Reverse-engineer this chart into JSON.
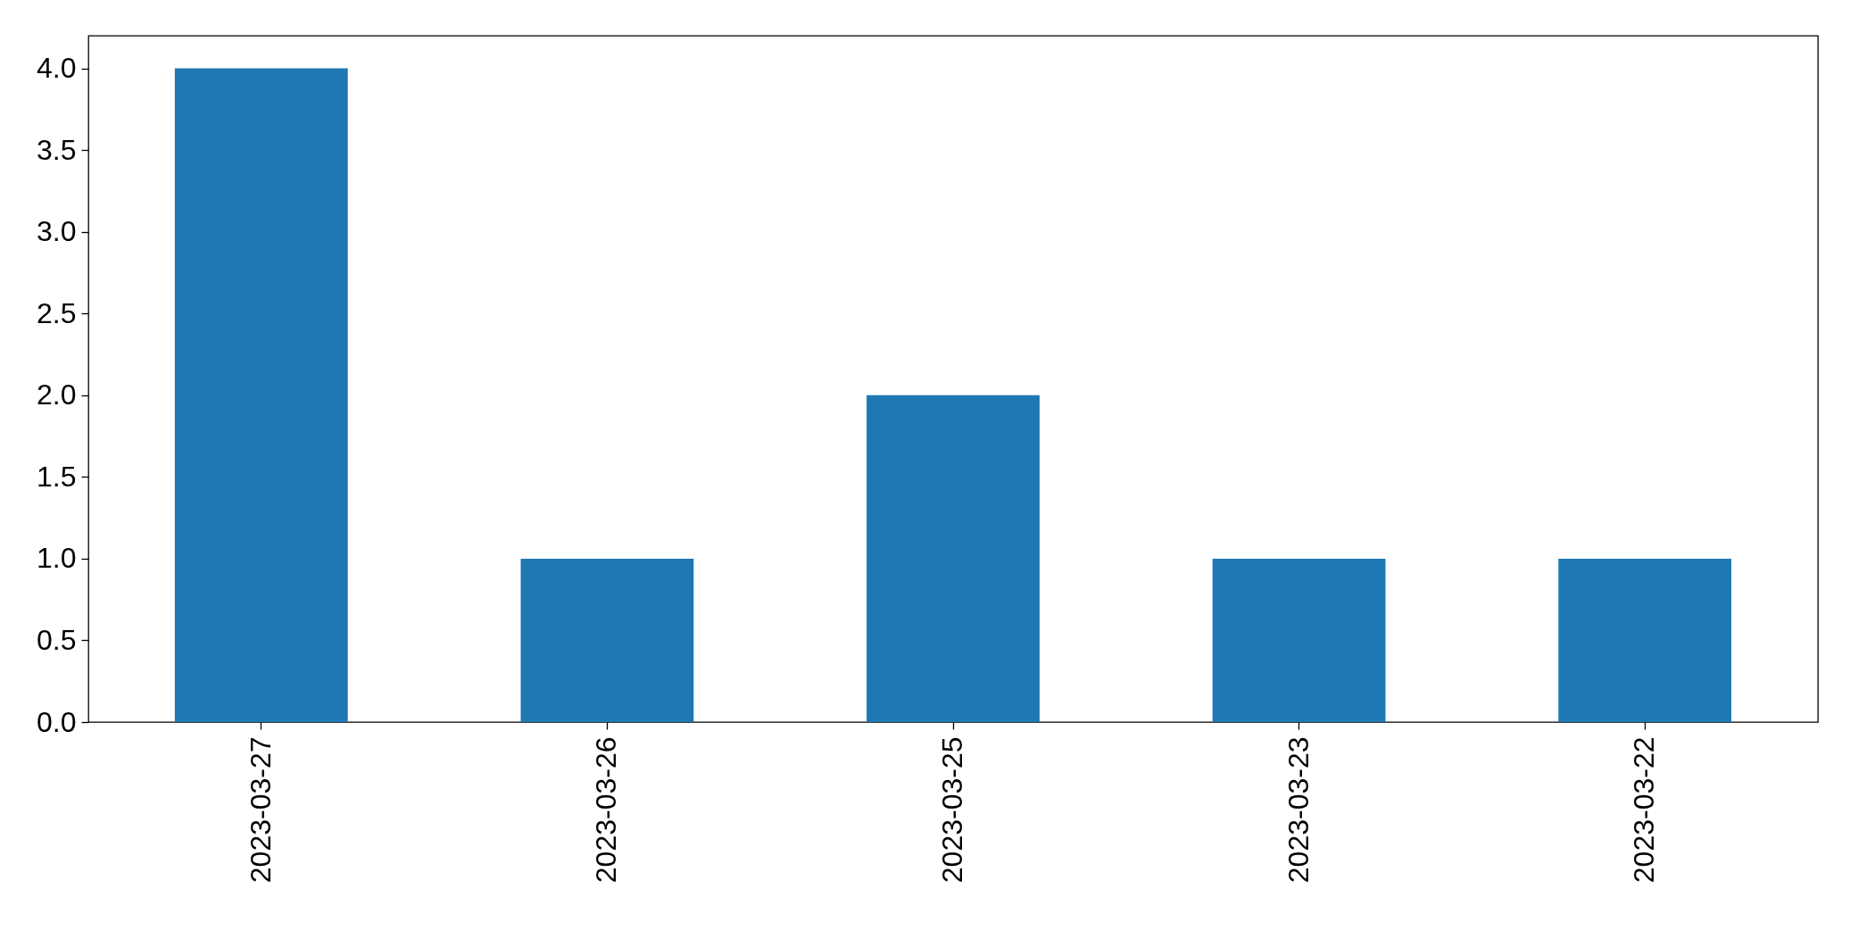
{
  "chart_data": {
    "type": "bar",
    "categories": [
      "2023-03-27",
      "2023-03-26",
      "2023-03-25",
      "2023-03-23",
      "2023-03-22"
    ],
    "values": [
      4,
      1,
      2,
      1,
      1
    ],
    "color": "#1f77b4",
    "ylim": [
      0,
      4.2
    ],
    "yticks": [
      {
        "value": 0,
        "label": "0.0"
      },
      {
        "value": 0.5,
        "label": "0.5"
      },
      {
        "value": 1,
        "label": "1.0"
      },
      {
        "value": 1.5,
        "label": "1.5"
      },
      {
        "value": 2,
        "label": "2.0"
      },
      {
        "value": 2.5,
        "label": "2.5"
      },
      {
        "value": 3,
        "label": "3.0"
      },
      {
        "value": 3.5,
        "label": "3.5"
      },
      {
        "value": 4,
        "label": "4.0"
      }
    ],
    "grid": false
  }
}
